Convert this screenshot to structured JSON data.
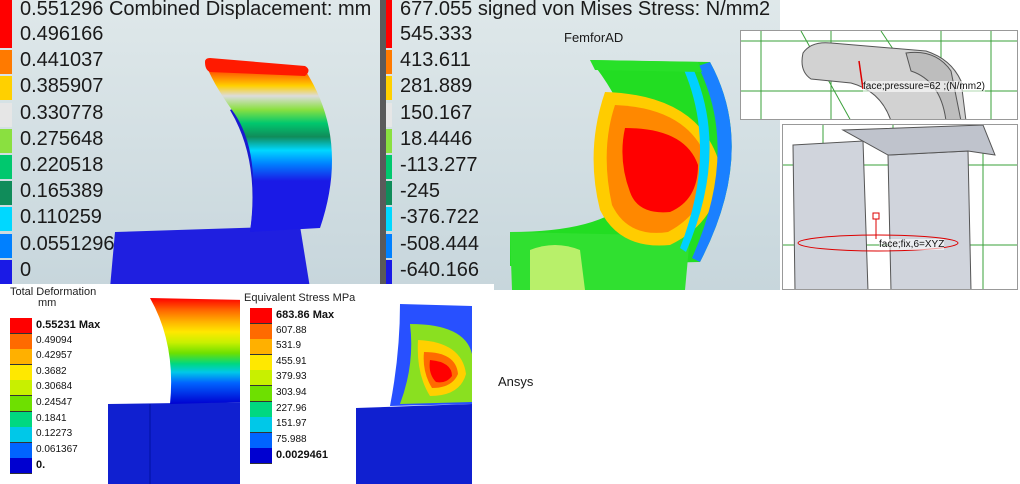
{
  "femforad_displacement": {
    "title": "0.551296 Combined Displacement: mm",
    "levels": [
      "0.496166",
      "0.441037",
      "0.385907",
      "0.330778",
      "0.275648",
      "0.220518",
      "0.165389",
      "0.110259",
      "0.0551296",
      "0"
    ],
    "colors": [
      "#ff0000",
      "#ff7a00",
      "#ffd000",
      "#e6e6e6",
      "#8ae040",
      "#00c86e",
      "#108c5a",
      "#00d8ff",
      "#0080ff",
      "#1a1ae6"
    ]
  },
  "femforad_stress": {
    "title": "677.055 signed von Mises Stress: N/mm2",
    "levels": [
      "545.333",
      "413.611",
      "281.889",
      "150.167",
      "18.4446",
      "-113.277",
      "-245",
      "-376.722",
      "-508.444",
      "-640.166"
    ],
    "colors": [
      "#ff0000",
      "#ff7a00",
      "#ffd000",
      "#e6e6e6",
      "#8ae040",
      "#00c86e",
      "#108c5a",
      "#00d8ff",
      "#0080ff",
      "#1a1ae6"
    ],
    "caption": "FemforAD"
  },
  "model_views": {
    "annot_pressure": "face;pressure=62 ;(N/mm2)",
    "annot_fix": "face;fix,6=XYZ"
  },
  "ansys_deformation": {
    "title": "Total Deformation",
    "unit": "mm",
    "max_label": "0.55231 Max",
    "levels": [
      "0.49094",
      "0.42957",
      "0.3682",
      "0.30684",
      "0.24547",
      "0.1841",
      "0.12273",
      "0.061367"
    ],
    "min_label": "0.",
    "colors": [
      "#ff0000",
      "#ff6a00",
      "#ffb000",
      "#ffe800",
      "#c8f000",
      "#6ee000",
      "#00d880",
      "#00c8e8",
      "#0064ff",
      "#0000d0"
    ]
  },
  "ansys_stress": {
    "title": "Equivalent Stress",
    "unit": "MPa",
    "max_label": "683.86 Max",
    "levels": [
      "607.88",
      "531.9",
      "455.91",
      "379.93",
      "303.94",
      "227.96",
      "151.97",
      "75.988"
    ],
    "min_label": "0.0029461",
    "colors": [
      "#ff0000",
      "#ff6a00",
      "#ffb000",
      "#ffe800",
      "#c8f000",
      "#6ee000",
      "#00d880",
      "#00c8e8",
      "#0064ff",
      "#0000d0"
    ],
    "caption": "Ansys"
  }
}
